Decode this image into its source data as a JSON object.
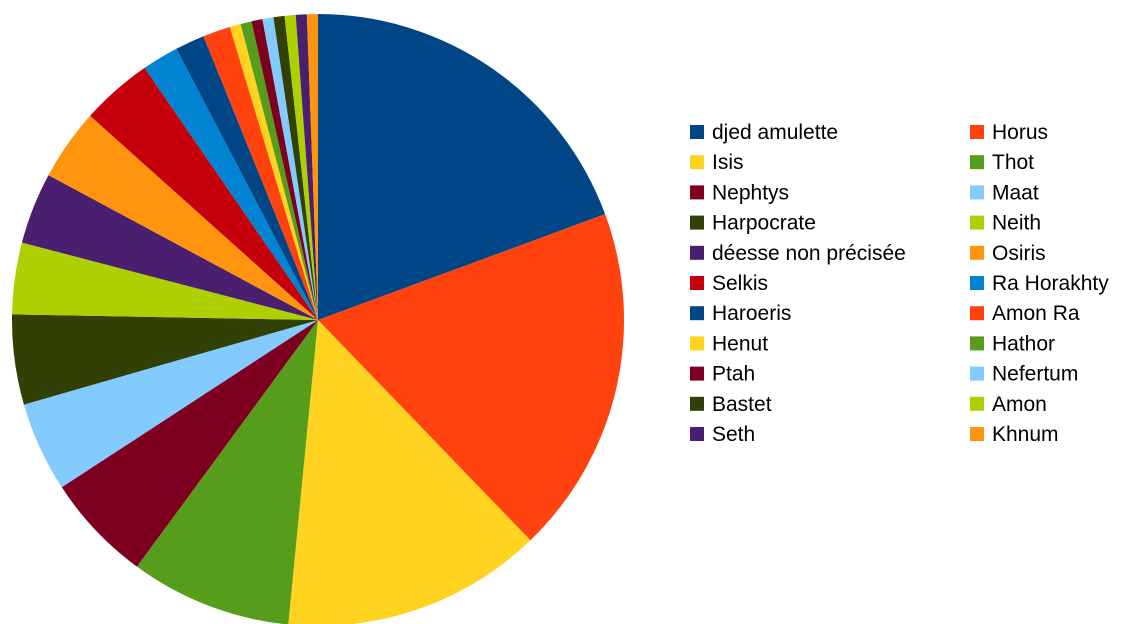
{
  "chart_data": {
    "type": "pie",
    "title": "",
    "start_angle_deg": 90,
    "direction": "clockwise",
    "legend": {
      "placement": "right",
      "columns": 2
    },
    "slices": [
      {
        "label": "djed amulette",
        "value": 20.0,
        "color": "#004586"
      },
      {
        "label": "Horus",
        "value": 19.0,
        "color": "#ff420e"
      },
      {
        "label": "Isis",
        "value": 14.2,
        "color": "#ffd320"
      },
      {
        "label": "Thot",
        "value": 8.8,
        "color": "#579d1c"
      },
      {
        "label": "Nephtys",
        "value": 5.9,
        "color": "#7e0021"
      },
      {
        "label": "Maat",
        "value": 4.9,
        "color": "#83caff"
      },
      {
        "label": "Harpocrate",
        "value": 4.9,
        "color": "#314004"
      },
      {
        "label": "Neith",
        "value": 3.9,
        "color": "#aecf00"
      },
      {
        "label": "déesse non précisée",
        "value": 3.9,
        "color": "#4b1f6f"
      },
      {
        "label": "Osiris",
        "value": 3.9,
        "color": "#ff950e"
      },
      {
        "label": "Selkis",
        "value": 3.9,
        "color": "#c5000b"
      },
      {
        "label": "Ra Horakhty",
        "value": 2.0,
        "color": "#0084d1"
      },
      {
        "label": "Haroeris",
        "value": 1.6,
        "color": "#004586"
      },
      {
        "label": "Amon Ra",
        "value": 1.5,
        "color": "#ff420e"
      },
      {
        "label": "Henut",
        "value": 0.6,
        "color": "#ffd320"
      },
      {
        "label": "Hathor",
        "value": 0.6,
        "color": "#579d1c"
      },
      {
        "label": "Ptah",
        "value": 0.6,
        "color": "#7e0021"
      },
      {
        "label": "Nefertum",
        "value": 0.6,
        "color": "#83caff"
      },
      {
        "label": "Bastet",
        "value": 0.6,
        "color": "#314004"
      },
      {
        "label": "Amon",
        "value": 0.6,
        "color": "#aecf00"
      },
      {
        "label": "Seth",
        "value": 0.6,
        "color": "#4b1f6f"
      },
      {
        "label": "Khnum",
        "value": 0.6,
        "color": "#ff950e"
      }
    ]
  }
}
